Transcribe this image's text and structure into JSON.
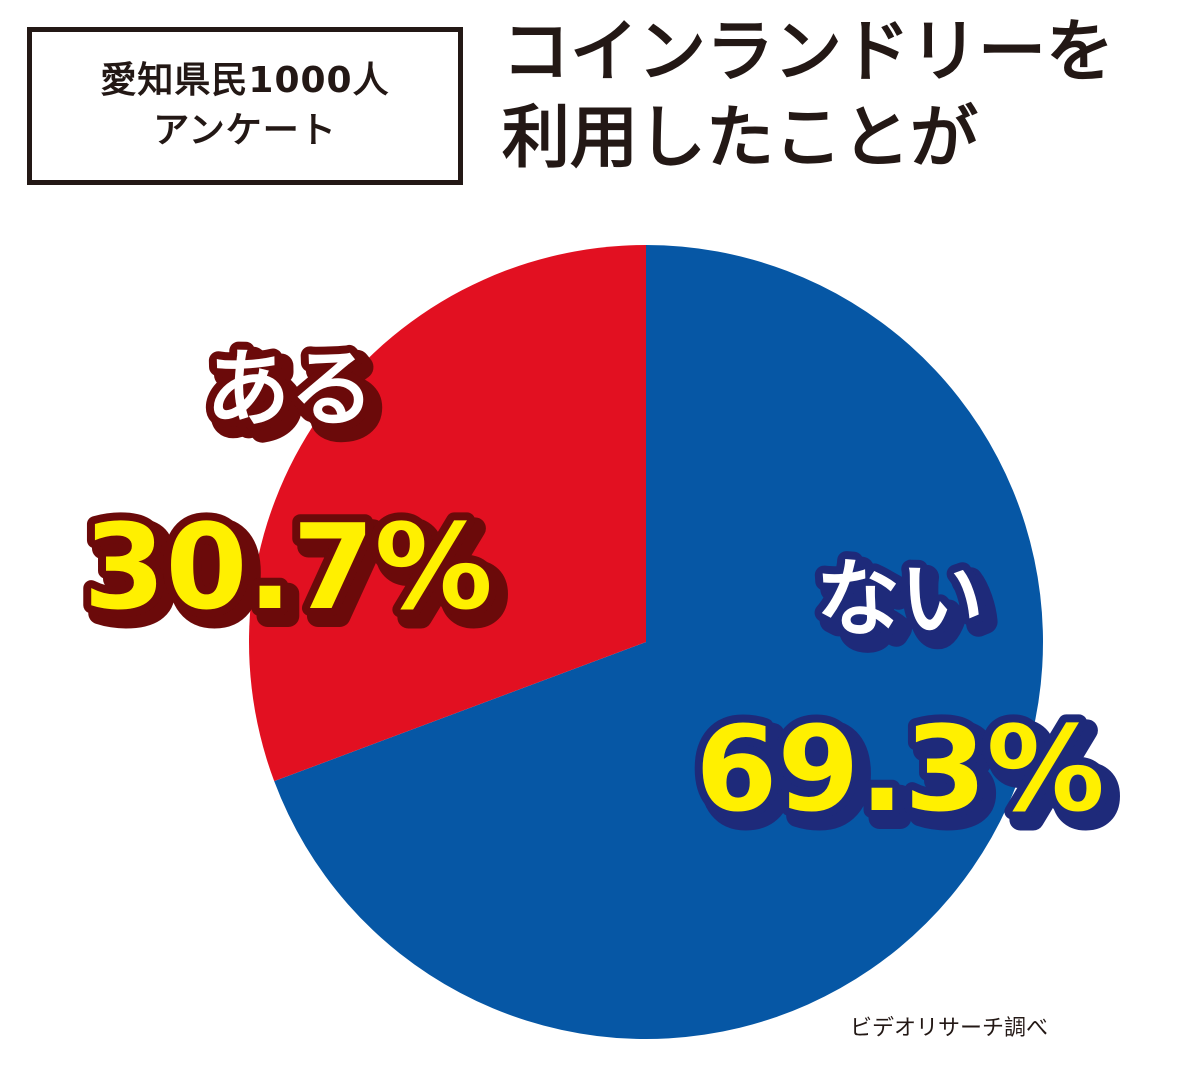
{
  "survey_label": {
    "line1": "愛知県民1000人",
    "line2": "アンケート"
  },
  "title": {
    "line1": "コインランドリーを",
    "line2": "利用したことが"
  },
  "source": "ビデオリサーチ調べ",
  "colors": {
    "yes_slice": "#e21021",
    "no_slice": "#0657a5",
    "yes_outline": "#6b0a0a",
    "no_outline": "#1e2a7a",
    "value_fill": "#fff000",
    "label_fill": "#ffffff",
    "text": "#231815"
  },
  "chart_data": {
    "type": "pie",
    "title": "コインランドリーを利用したことが",
    "slices": [
      {
        "label": "ない",
        "value": 69.3,
        "value_label": "69.3%",
        "color": "#0657a5"
      },
      {
        "label": "ある",
        "value": 30.7,
        "value_label": "30.7%",
        "color": "#e21021"
      }
    ],
    "start": "12 o'clock",
    "direction": "clockwise"
  }
}
